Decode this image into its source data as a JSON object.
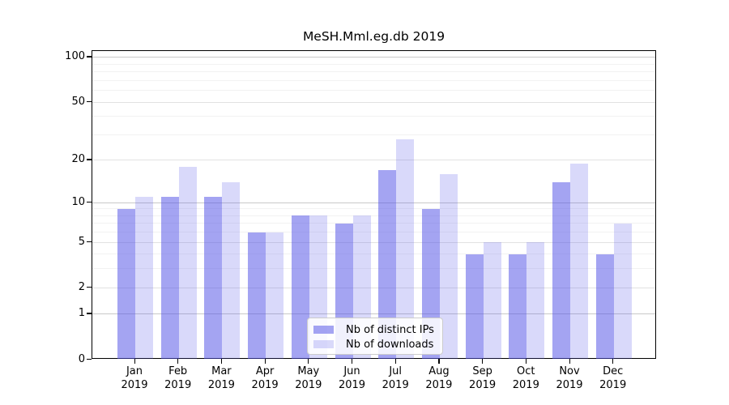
{
  "chart_data": {
    "type": "bar",
    "title": "MeSH.Mml.eg.db 2019",
    "categories": [
      "Jan",
      "Feb",
      "Mar",
      "Apr",
      "May",
      "Jun",
      "Jul",
      "Aug",
      "Sep",
      "Oct",
      "Nov",
      "Dec"
    ],
    "category_year": "2019",
    "series": [
      {
        "name": "Nb of distinct IPs",
        "color": "rgba(80,80,230,0.52)",
        "values": [
          9,
          11,
          11,
          6,
          8,
          7,
          17,
          9,
          4,
          4,
          14,
          4
        ]
      },
      {
        "name": "Nb of downloads",
        "color": "rgba(80,80,230,0.22)",
        "values": [
          11,
          18,
          14,
          6,
          8,
          8,
          28,
          16,
          5,
          5,
          19,
          7
        ]
      }
    ],
    "y_axis": {
      "scale": "log1p",
      "major_ticks": [
        100,
        50,
        20,
        10,
        5,
        2,
        1,
        0
      ],
      "minor_ticks": [
        3,
        4,
        6,
        7,
        8,
        9,
        30,
        40,
        60,
        70,
        80,
        90
      ],
      "range": [
        0,
        110
      ]
    },
    "legend": {
      "position": "lower-center",
      "entries": [
        "Nb of distinct IPs",
        "Nb of downloads"
      ]
    },
    "grid": true
  },
  "colors": {
    "bar_base": "#5050e6",
    "grid_decade": "#c9c9c9",
    "grid_major": "#e2e2e2",
    "grid_minor": "#f2f2f2",
    "axis": "#000000",
    "legend_border": "#cccccc"
  }
}
